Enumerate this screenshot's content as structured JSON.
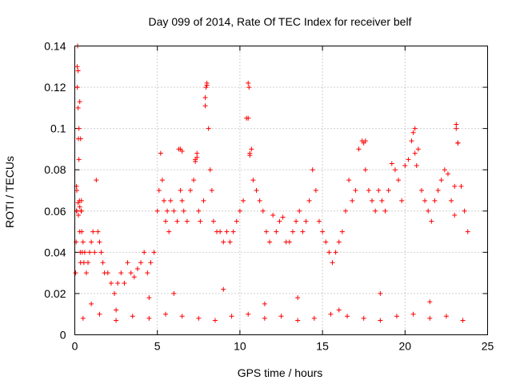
{
  "chart_data": {
    "type": "scatter",
    "title": "Day 099 of 2014, Rate Of TEC Index for receiver belf",
    "xlabel": "GPS time / hours",
    "ylabel": "ROTI / TECUs",
    "xlim": [
      0,
      25
    ],
    "ylim": [
      0,
      0.14
    ],
    "xticks": [
      0,
      5,
      10,
      15,
      20,
      25
    ],
    "xtick_labels": [
      "0",
      "5",
      "10",
      "15",
      "20",
      "25"
    ],
    "yticks": [
      0,
      0.02,
      0.04,
      0.06,
      0.08,
      0.1,
      0.12,
      0.14
    ],
    "ytick_labels": [
      "0",
      "0.02",
      "0.04",
      "0.06",
      "0.08",
      "0.1",
      "0.12",
      "0.14"
    ],
    "grid": true,
    "marker": "+",
    "color": "#ff0000",
    "series": [
      {
        "name": "ROTI",
        "x": [
          0.05,
          0.08,
          0.1,
          0.12,
          0.15,
          0.17,
          0.2,
          0.22,
          0.25,
          0.28,
          0.3,
          0.33,
          0.35,
          0.38,
          0.4,
          0.42,
          0.45,
          0.5,
          0.55,
          0.6,
          0.7,
          0.8,
          0.9,
          1.0,
          1.1,
          1.2,
          1.3,
          1.4,
          1.5,
          1.6,
          1.7,
          1.8,
          2.0,
          2.2,
          2.4,
          2.6,
          2.8,
          3.0,
          3.2,
          3.4,
          3.6,
          3.8,
          4.0,
          4.2,
          4.4,
          4.6,
          4.8,
          5.0,
          5.1,
          5.2,
          5.3,
          5.4,
          5.5,
          5.6,
          5.7,
          5.8,
          6.0,
          6.2,
          6.3,
          6.4,
          6.5,
          6.6,
          6.8,
          7.0,
          7.2,
          7.3,
          7.4,
          7.5,
          7.6,
          7.8,
          7.9,
          8.0,
          8.1,
          8.2,
          8.3,
          8.4,
          8.6,
          8.8,
          9.0,
          9.2,
          9.4,
          9.6,
          9.8,
          10.0,
          10.2,
          10.4,
          10.5,
          10.6,
          10.7,
          10.8,
          11.0,
          11.2,
          11.4,
          11.6,
          11.8,
          12.0,
          12.2,
          12.4,
          12.6,
          12.8,
          13.0,
          13.2,
          13.4,
          13.6,
          13.8,
          14.0,
          14.2,
          14.4,
          14.6,
          14.8,
          15.0,
          15.2,
          15.4,
          15.6,
          15.8,
          16.0,
          16.2,
          16.4,
          16.6,
          16.8,
          17.0,
          17.2,
          17.4,
          17.6,
          17.8,
          18.0,
          18.2,
          18.4,
          18.6,
          18.8,
          19.0,
          19.2,
          19.4,
          19.6,
          19.8,
          20.0,
          20.2,
          20.4,
          20.6,
          20.8,
          21.0,
          21.2,
          21.4,
          21.6,
          21.8,
          22.0,
          22.2,
          22.4,
          22.6,
          22.8,
          23.0,
          23.1,
          23.2,
          23.4,
          23.6,
          23.8,
          0.1,
          0.2,
          0.3,
          0.15,
          0.25,
          0.35,
          0.2,
          0.3,
          0.4,
          0.12,
          0.22,
          7.9,
          8.0,
          7.95,
          10.5,
          10.6,
          10.55,
          6.4,
          6.5,
          7.3,
          7.4,
          17.5,
          17.6,
          20.5,
          20.6,
          20.7,
          23.1,
          23.2,
          23.0,
          1.0,
          2.5,
          4.5,
          6.0,
          9.0,
          11.5,
          13.5,
          16.0,
          18.5,
          21.5,
          0.5,
          1.5,
          2.5,
          3.5,
          4.5,
          5.5,
          6.5,
          7.5,
          8.5,
          9.5,
          10.5,
          11.5,
          12.5,
          13.5,
          14.5,
          15.5,
          16.5,
          17.5,
          18.5,
          19.5,
          20.5,
          21.5,
          22.5,
          23.5
        ],
        "y": [
          0.03,
          0.045,
          0.06,
          0.07,
          0.13,
          0.14,
          0.11,
          0.095,
          0.085,
          0.065,
          0.05,
          0.04,
          0.035,
          0.06,
          0.065,
          0.05,
          0.04,
          0.045,
          0.035,
          0.04,
          0.03,
          0.035,
          0.04,
          0.045,
          0.05,
          0.04,
          0.075,
          0.05,
          0.045,
          0.04,
          0.035,
          0.03,
          0.03,
          0.025,
          0.02,
          0.025,
          0.03,
          0.025,
          0.035,
          0.03,
          0.028,
          0.032,
          0.035,
          0.04,
          0.03,
          0.035,
          0.04,
          0.06,
          0.07,
          0.088,
          0.075,
          0.065,
          0.055,
          0.06,
          0.05,
          0.065,
          0.06,
          0.055,
          0.09,
          0.07,
          0.065,
          0.06,
          0.055,
          0.07,
          0.075,
          0.085,
          0.088,
          0.06,
          0.055,
          0.065,
          0.115,
          0.122,
          0.1,
          0.08,
          0.07,
          0.055,
          0.05,
          0.05,
          0.045,
          0.05,
          0.045,
          0.05,
          0.055,
          0.06,
          0.065,
          0.105,
          0.122,
          0.088,
          0.09,
          0.075,
          0.07,
          0.065,
          0.06,
          0.05,
          0.045,
          0.058,
          0.05,
          0.055,
          0.057,
          0.045,
          0.045,
          0.05,
          0.055,
          0.06,
          0.05,
          0.055,
          0.065,
          0.08,
          0.07,
          0.055,
          0.05,
          0.045,
          0.04,
          0.035,
          0.04,
          0.045,
          0.05,
          0.06,
          0.075,
          0.065,
          0.07,
          0.09,
          0.094,
          0.08,
          0.07,
          0.065,
          0.06,
          0.07,
          0.065,
          0.06,
          0.07,
          0.083,
          0.08,
          0.075,
          0.065,
          0.082,
          0.085,
          0.094,
          0.1,
          0.09,
          0.07,
          0.065,
          0.06,
          0.055,
          0.065,
          0.07,
          0.075,
          0.08,
          0.078,
          0.065,
          0.058,
          0.1,
          0.093,
          0.072,
          0.06,
          0.05,
          0.072,
          0.128,
          0.113,
          0.12,
          0.1,
          0.095,
          0.064,
          0.062,
          0.06,
          0.06,
          0.058,
          0.111,
          0.121,
          0.12,
          0.105,
          0.087,
          0.12,
          0.09,
          0.089,
          0.084,
          0.086,
          0.093,
          0.094,
          0.098,
          0.088,
          0.082,
          0.102,
          0.093,
          0.072,
          0.015,
          0.012,
          0.018,
          0.02,
          0.022,
          0.015,
          0.018,
          0.012,
          0.02,
          0.016,
          0.008,
          0.01,
          0.007,
          0.009,
          0.008,
          0.01,
          0.009,
          0.008,
          0.007,
          0.009,
          0.01,
          0.008,
          0.009,
          0.007,
          0.008,
          0.01,
          0.009,
          0.008,
          0.007,
          0.009,
          0.01,
          0.008,
          0.009,
          0.007
        ]
      }
    ]
  }
}
